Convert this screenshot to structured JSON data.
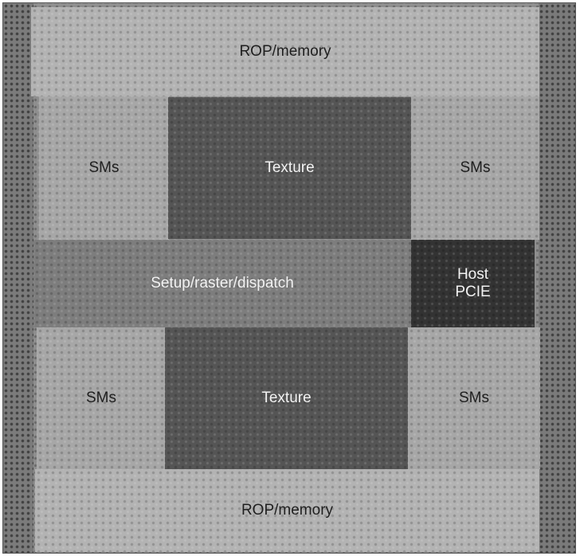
{
  "blocks": {
    "rop_top": "ROP/memory",
    "sms_upper_left": "SMs",
    "texture_upper": "Texture",
    "sms_upper_right": "SMs",
    "setup": "Setup/raster/dispatch",
    "host_line1": "Host",
    "host_line2": "PCIE",
    "sms_lower_left": "SMs",
    "texture_lower": "Texture",
    "sms_lower_right": "SMs",
    "rop_bottom": "ROP/memory"
  },
  "colors": {
    "rop": "#b3b3b3",
    "sms": "#a7a7a7",
    "texture": "#555555",
    "setup": "#7d7d7d",
    "host": "#333333"
  }
}
